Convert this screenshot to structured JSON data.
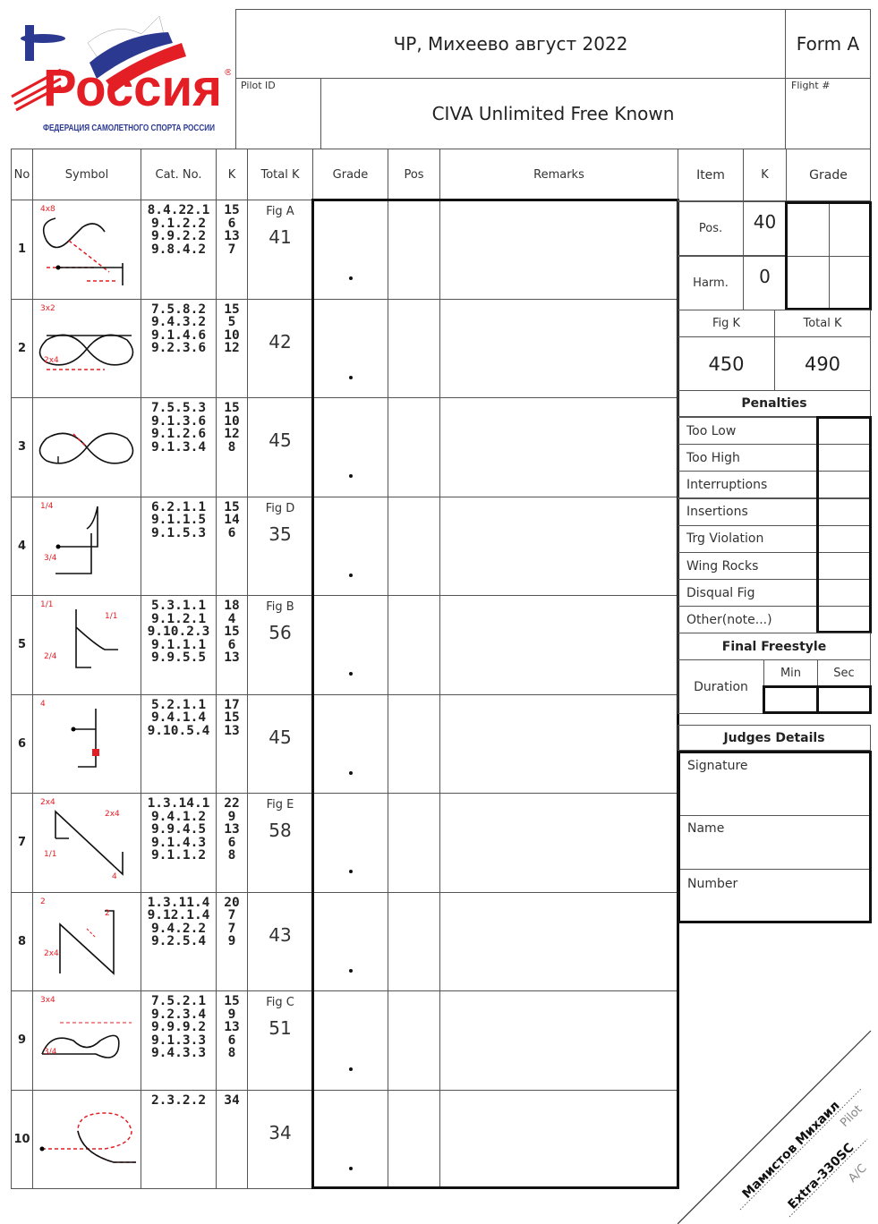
{
  "logo": {
    "word": "Россия",
    "federation": "ФЕДЕРАЦИЯ САМОЛЕТНОГО СПОРТА РОССИИ",
    "mark": "®",
    "colors": {
      "red": "#e31e24",
      "blue": "#2b3990"
    }
  },
  "header": {
    "event": "ЧР, Михеево август 2022",
    "form": "Form A",
    "pilot_id_label": "Pilot ID",
    "sequence": "CIVA Unlimited Free Known",
    "flight_label": "Flight #"
  },
  "columns": {
    "no": "No",
    "symbol": "Symbol",
    "cat": "Cat. No.",
    "k": "K",
    "total_k": "Total K",
    "grade": "Grade",
    "pos": "Pos",
    "remarks": "Remarks"
  },
  "rows": [
    {
      "no": "1",
      "cat": [
        "8.4.22.1",
        "9.1.2.2",
        "9.9.2.2",
        "9.8.4.2"
      ],
      "k": [
        "15",
        "6",
        "13",
        "7"
      ],
      "fig": "Fig A",
      "total": "41",
      "sym_labels": [
        "4x8"
      ]
    },
    {
      "no": "2",
      "cat": [
        "7.5.8.2",
        "9.4.3.2",
        "9.1.4.6",
        "9.2.3.6"
      ],
      "k": [
        "15",
        "5",
        "10",
        "12"
      ],
      "fig": "",
      "total": "42",
      "sym_labels": [
        "3x2",
        "2x4"
      ]
    },
    {
      "no": "3",
      "cat": [
        "7.5.5.3",
        "9.1.3.6",
        "9.1.2.6",
        "9.1.3.4"
      ],
      "k": [
        "15",
        "10",
        "12",
        "8"
      ],
      "fig": "",
      "total": "45",
      "sym_labels": []
    },
    {
      "no": "4",
      "cat": [
        "6.2.1.1",
        "9.1.1.5",
        "9.1.5.3"
      ],
      "k": [
        "15",
        "14",
        "6"
      ],
      "fig": "Fig D",
      "total": "35",
      "sym_labels": [
        "1/4",
        "3/4"
      ]
    },
    {
      "no": "5",
      "cat": [
        "5.3.1.1",
        "9.1.2.1",
        "9.10.2.3",
        "9.1.1.1",
        "9.9.5.5"
      ],
      "k": [
        "18",
        "4",
        "15",
        "6",
        "13"
      ],
      "fig": "Fig B",
      "total": "56",
      "sym_labels": [
        "1/1",
        "2/4",
        "1/1"
      ]
    },
    {
      "no": "6",
      "cat": [
        "5.2.1.1",
        "9.4.1.4",
        "9.10.5.4"
      ],
      "k": [
        "17",
        "15",
        "13"
      ],
      "fig": "",
      "total": "45",
      "sym_labels": [
        "4"
      ]
    },
    {
      "no": "7",
      "cat": [
        "1.3.14.1",
        "9.4.1.2",
        "9.9.4.5",
        "9.1.4.3",
        "9.1.1.2"
      ],
      "k": [
        "22",
        "9",
        "13",
        "6",
        "8"
      ],
      "fig": "Fig E",
      "total": "58",
      "sym_labels": [
        "2x4",
        "1/1",
        "2x4",
        "4"
      ]
    },
    {
      "no": "8",
      "cat": [
        "1.3.11.4",
        "9.12.1.4",
        "9.4.2.2",
        "9.2.5.4"
      ],
      "k": [
        "20",
        "7",
        "7",
        "9"
      ],
      "fig": "",
      "total": "43",
      "sym_labels": [
        "2",
        "2x4",
        "2"
      ]
    },
    {
      "no": "9",
      "cat": [
        "7.5.2.1",
        "9.2.3.4",
        "9.9.9.2",
        "9.1.3.3",
        "9.4.3.3"
      ],
      "k": [
        "15",
        "9",
        "13",
        "6",
        "8"
      ],
      "fig": "Fig C",
      "total": "51",
      "sym_labels": [
        "3x4",
        "3/4"
      ]
    },
    {
      "no": "10",
      "cat": [
        "2.3.2.2"
      ],
      "k": [
        "34"
      ],
      "fig": "",
      "total": "34",
      "sym_labels": []
    }
  ],
  "summary": {
    "item": "Item",
    "k": "K",
    "grade": "Grade",
    "pos_label": "Pos.",
    "pos_k": "40",
    "harm_label": "Harm.",
    "harm_k": "0",
    "fig_k_label": "Fig K",
    "total_k_label": "Total K",
    "fig_k": "450",
    "total_k": "490"
  },
  "penalties": {
    "title": "Penalties",
    "items": [
      "Too Low",
      "Too High",
      "Interruptions",
      "Insertions",
      "Trg Violation",
      "Wing Rocks",
      "Disqual Fig",
      "Other(note...)"
    ]
  },
  "freestyle": {
    "title": "Final Freestyle",
    "duration": "Duration",
    "min": "Min",
    "sec": "Sec"
  },
  "judges": {
    "title": "Judges Details",
    "signature": "Signature",
    "name": "Name",
    "number": "Number"
  },
  "pilot": {
    "name": "Мамистов Михаил",
    "name_label": "Pilot",
    "aircraft": "Extra-330SC",
    "aircraft_label": "A/C"
  }
}
